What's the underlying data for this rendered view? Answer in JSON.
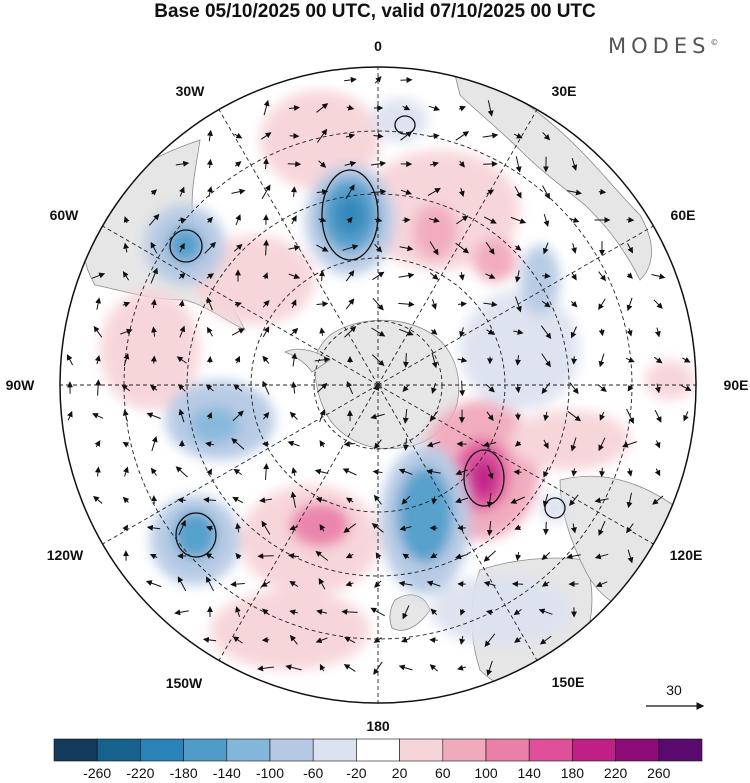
{
  "title": "Base 05/10/2025 00 UTC, valid 07/10/2025 00 UTC",
  "brand": "MODES",
  "brand_mark": "©",
  "longitude_labels": {
    "top": "0",
    "upper_right": "30E",
    "right_upper": "60E",
    "right": "90E",
    "right_lower": "120E",
    "lower_right": "150E",
    "bottom": "180",
    "lower_left": "150W",
    "left_lower": "120W",
    "left": "90W",
    "left_upper": "60W",
    "upper_left": "30W"
  },
  "vector_scale_label": "30",
  "colorbar": {
    "ticks": [
      "-260",
      "-220",
      "-180",
      "-140",
      "-100",
      "-60",
      "-20",
      "20",
      "60",
      "100",
      "140",
      "180",
      "220",
      "260"
    ],
    "colors": [
      "#123a5a",
      "#15628f",
      "#2a83b8",
      "#4f9ccb",
      "#82b6da",
      "#b5c9e4",
      "#dde2f0",
      "#ffffff",
      "#f7d4d9",
      "#f1a9bc",
      "#ea7fa8",
      "#e0509a",
      "#c01f86",
      "#8e0c7a",
      "#5a0a6e"
    ]
  },
  "field_colors": {
    "land": "#e6e6e6",
    "coast": "#8a8a8a",
    "grid": "#222222",
    "blue_light": "#dde2f0",
    "blue_mid": "#b5c9e4",
    "blue_dark": "#4f9ccb",
    "red_light": "#f7d4d9",
    "red_mid": "#f1a9bc",
    "red_dark": "#c01f86"
  }
}
